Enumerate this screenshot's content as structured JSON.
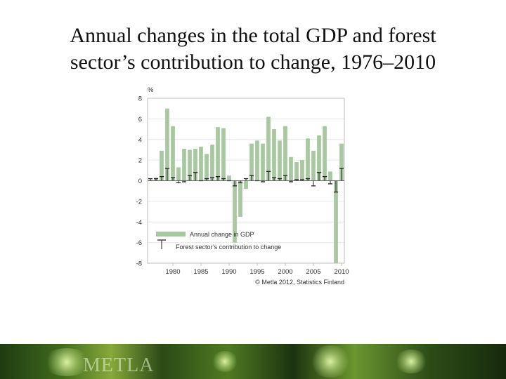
{
  "slide": {
    "title_line1": "Annual changes in the total GDP and forest",
    "title_line2": "sector’s contribution to change, 1976–2010",
    "brand": "METLA"
  },
  "colors": {
    "bar": "#a8c8a0",
    "errorbar": "#222222",
    "grid": "#e6e6e6",
    "plot_border": "#bdbdbd",
    "axis_text": "#333333"
  },
  "chart_data": {
    "type": "bar",
    "ylabel": "%",
    "ylim": [
      -8,
      8
    ],
    "yticks": [
      -8,
      -6,
      -4,
      -2,
      0,
      2,
      4,
      6,
      8
    ],
    "ytick_labels": [
      "-8",
      "-6",
      "-4",
      "-2",
      "0",
      "2",
      "4",
      "6",
      "8"
    ],
    "xticks": [
      1980,
      1985,
      1990,
      1995,
      2000,
      2005,
      2010
    ],
    "xtick_labels": [
      "1980",
      "1985",
      "1990",
      "1995",
      "2000",
      "2005",
      "2010"
    ],
    "grid": "horizontal",
    "legend_position": "bottom-left",
    "x": [
      1976,
      1977,
      1978,
      1979,
      1980,
      1981,
      1982,
      1983,
      1984,
      1985,
      1986,
      1987,
      1988,
      1989,
      1990,
      1991,
      1992,
      1993,
      1994,
      1995,
      1996,
      1997,
      1998,
      1999,
      2000,
      2001,
      2002,
      2003,
      2004,
      2005,
      2006,
      2007,
      2008,
      2009,
      2010
    ],
    "series": [
      {
        "name": "Annual change in GDP",
        "values": [
          0.1,
          0.3,
          2.9,
          7.0,
          5.3,
          1.3,
          3.1,
          3.0,
          3.1,
          3.3,
          2.6,
          3.5,
          5.2,
          5.1,
          0.5,
          -6.0,
          -3.5,
          -0.8,
          3.6,
          3.9,
          3.6,
          6.2,
          5.0,
          3.9,
          5.3,
          2.3,
          1.8,
          2.0,
          4.1,
          2.9,
          4.4,
          5.3,
          0.9,
          -8.0,
          3.6
        ]
      },
      {
        "name": "Forest sector’s contribution to change",
        "values": [
          0.2,
          0.2,
          0.4,
          1.2,
          0.3,
          -0.2,
          -0.1,
          0.5,
          0.8,
          0.0,
          0.2,
          0.3,
          0.4,
          0.2,
          0.0,
          -0.5,
          -0.2,
          0.2,
          0.5,
          0.0,
          -0.1,
          0.9,
          0.3,
          0.2,
          0.5,
          -0.1,
          0.1,
          0.1,
          0.2,
          -0.5,
          0.8,
          0.4,
          -0.3,
          -1.1,
          1.2
        ]
      }
    ],
    "source": "© Metla 2012, Statistics Finland"
  }
}
